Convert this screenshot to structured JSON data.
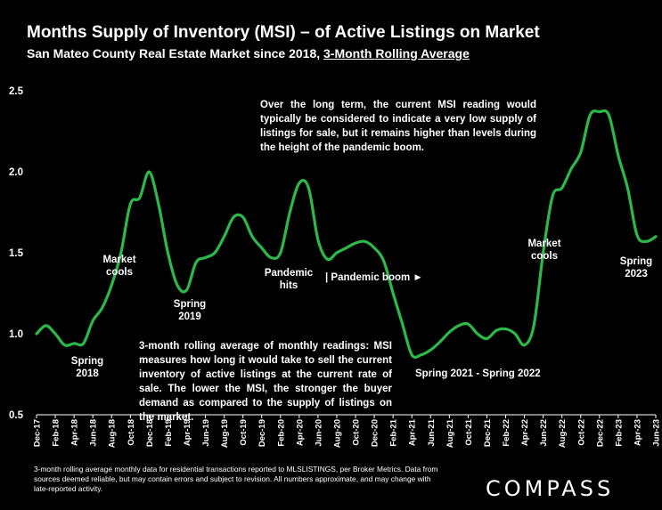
{
  "title": "Months Supply of Inventory (MSI) – of Active Listings on Market",
  "subtitle_main": "San Mateo County Real Estate Market since 2018,",
  "subtitle_link": "3-Month Rolling Average",
  "colors": {
    "line": "#2db84a",
    "background": "#000000",
    "axis": "#ffffff"
  },
  "annotations": {
    "long_term": "Over the long term, the current MSI reading would typically be considered to indicate a very low supply of listings for sale, but it remains higher than levels during the height of the pandemic boom.",
    "explanation": "3-month rolling average of monthly readings: MSI measures how long it would take to sell the current inventory of active listings at the current rate of sale. The lower the MSI, the stronger the buyer demand as compared to the supply of listings on the market.",
    "spring_2018_a": "Spring",
    "spring_2018_b": "2018",
    "market_cools_1a": "Market",
    "market_cools_1b": "cools",
    "spring_2019_a": "Spring",
    "spring_2019_b": "2019",
    "pandemic_hits_a": "Pandemic",
    "pandemic_hits_b": "hits",
    "pandemic_boom": "| Pandemic boom ►",
    "spring_2021_2022": "Spring 2021 - Spring 2022",
    "market_cools_2a": "Market",
    "market_cools_2b": "cools",
    "spring_2023_a": "Spring",
    "spring_2023_b": "2023"
  },
  "footnote": "3-month rolling average monthly data for residential transactions reported to MLSLISTINGS, per Broker Metrics. Data from sources deemed reliable, but may contain errors and subject to revision. All numbers approximate, and may change with late-reported activity.",
  "logo": "COMPASS",
  "chart_data": {
    "type": "line",
    "title": "Months Supply of Inventory (MSI) – of Active Listings on Market",
    "ylim": [
      0.5,
      2.5
    ],
    "yticks": [
      "0.5",
      "1.0",
      "1.5",
      "2.0",
      "2.5"
    ],
    "ytick_values": [
      0.5,
      1.0,
      1.5,
      2.0,
      2.5
    ],
    "grid": false,
    "xtick_labels": [
      "Dec-17",
      "Feb-18",
      "Apr-18",
      "Jun-18",
      "Aug-18",
      "Oct-18",
      "Dec-18",
      "Feb-19",
      "Apr-19",
      "Jun-19",
      "Aug-19",
      "Oct-19",
      "Dec-19",
      "Feb-20",
      "Apr-20",
      "Jun-20",
      "Aug-20",
      "Oct-20",
      "Dec-20",
      "Feb-21",
      "Apr-21",
      "Jun-21",
      "Aug-21",
      "Oct-21",
      "Dec-21",
      "Feb-22",
      "Apr-22",
      "Jun-22",
      "Aug-22",
      "Oct-22",
      "Dec-22",
      "Feb-23",
      "Apr-23",
      "Jun-23"
    ],
    "x": [
      "Dec-17",
      "Jan-18",
      "Feb-18",
      "Mar-18",
      "Apr-18",
      "May-18",
      "Jun-18",
      "Jul-18",
      "Aug-18",
      "Sep-18",
      "Oct-18",
      "Nov-18",
      "Dec-18",
      "Jan-19",
      "Feb-19",
      "Mar-19",
      "Apr-19",
      "May-19",
      "Jun-19",
      "Jul-19",
      "Aug-19",
      "Sep-19",
      "Oct-19",
      "Nov-19",
      "Dec-19",
      "Jan-20",
      "Feb-20",
      "Mar-20",
      "Apr-20",
      "May-20",
      "Jun-20",
      "Jul-20",
      "Aug-20",
      "Sep-20",
      "Oct-20",
      "Nov-20",
      "Dec-20",
      "Jan-21",
      "Feb-21",
      "Mar-21",
      "Apr-21",
      "May-21",
      "Jun-21",
      "Jul-21",
      "Aug-21",
      "Sep-21",
      "Oct-21",
      "Nov-21",
      "Dec-21",
      "Jan-22",
      "Feb-22",
      "Mar-22",
      "Apr-22",
      "May-22",
      "Jun-22",
      "Jul-22",
      "Aug-22",
      "Sep-22",
      "Oct-22",
      "Nov-22",
      "Dec-22",
      "Jan-23",
      "Feb-23",
      "Mar-23",
      "Apr-23",
      "May-23",
      "Jun-23"
    ],
    "series": [
      {
        "values": [
          1.0,
          1.05,
          1.0,
          0.93,
          0.94,
          0.94,
          1.08,
          1.16,
          1.3,
          1.5,
          1.8,
          1.84,
          2.0,
          1.8,
          1.5,
          1.3,
          1.27,
          1.44,
          1.47,
          1.5,
          1.6,
          1.72,
          1.72,
          1.6,
          1.53,
          1.47,
          1.5,
          1.75,
          1.93,
          1.9,
          1.58,
          1.46,
          1.5,
          1.53,
          1.56,
          1.57,
          1.53,
          1.45,
          1.25,
          1.06,
          0.87,
          0.87,
          0.9,
          0.95,
          1.01,
          1.05,
          1.06,
          1.0,
          0.97,
          1.02,
          1.03,
          1.0,
          0.93,
          1.05,
          1.5,
          1.85,
          1.9,
          2.02,
          2.12,
          2.35,
          2.37,
          2.35,
          2.1,
          1.9,
          1.61,
          1.57,
          1.6
        ]
      }
    ]
  }
}
